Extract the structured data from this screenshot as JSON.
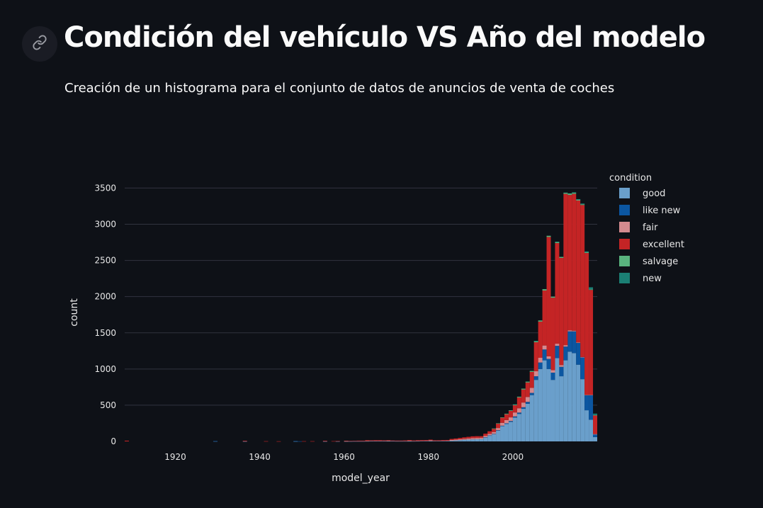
{
  "header": {
    "title": "Condición del vehículo VS Año del modelo",
    "subtitle": "Creación de un histograma para el conjunto de datos de anuncios de venta de coches",
    "anchor_icon": "link-icon"
  },
  "chart_data": {
    "type": "bar",
    "stacked": true,
    "xlabel": "model_year",
    "ylabel": "count",
    "xlim": [
      1908,
      2019
    ],
    "ylim": [
      0,
      3700
    ],
    "x_ticks": [
      1920,
      1940,
      1960,
      1980,
      2000
    ],
    "y_ticks": [
      0,
      500,
      1000,
      1500,
      2000,
      2500,
      3000,
      3500
    ],
    "grid": true,
    "legend": {
      "title": "condition",
      "placement": "right"
    },
    "bin_start": 1908,
    "bin_width": 1,
    "series": [
      {
        "name": "good",
        "color": "#6a9fcb",
        "bins": [
          [
            1929,
            3
          ],
          [
            1936,
            2
          ],
          [
            1948,
            2
          ],
          [
            1955,
            2
          ],
          [
            1958,
            2
          ],
          [
            1960,
            2
          ],
          [
            1961,
            2
          ],
          [
            1962,
            3
          ],
          [
            1963,
            3
          ],
          [
            1964,
            3
          ],
          [
            1965,
            4
          ],
          [
            1966,
            5
          ],
          [
            1967,
            5
          ],
          [
            1968,
            5
          ],
          [
            1969,
            5
          ],
          [
            1970,
            5
          ],
          [
            1971,
            5
          ],
          [
            1972,
            4
          ],
          [
            1973,
            4
          ],
          [
            1974,
            4
          ],
          [
            1975,
            4
          ],
          [
            1976,
            4
          ],
          [
            1977,
            5
          ],
          [
            1978,
            6
          ],
          [
            1979,
            7
          ],
          [
            1980,
            6
          ],
          [
            1981,
            6
          ],
          [
            1982,
            6
          ],
          [
            1983,
            7
          ],
          [
            1984,
            8
          ],
          [
            1985,
            10
          ],
          [
            1986,
            14
          ],
          [
            1987,
            18
          ],
          [
            1988,
            22
          ],
          [
            1989,
            25
          ],
          [
            1990,
            28
          ],
          [
            1991,
            30
          ],
          [
            1992,
            32
          ],
          [
            1993,
            55
          ],
          [
            1994,
            80
          ],
          [
            1995,
            100
          ],
          [
            1996,
            150
          ],
          [
            1997,
            210
          ],
          [
            1998,
            240
          ],
          [
            1999,
            270
          ],
          [
            2000,
            330
          ],
          [
            2001,
            380
          ],
          [
            2002,
            450
          ],
          [
            2003,
            520
          ],
          [
            2004,
            640
          ],
          [
            2005,
            850
          ],
          [
            2006,
            1000
          ],
          [
            2007,
            1120
          ],
          [
            2008,
            1000
          ],
          [
            2009,
            850
          ],
          [
            2010,
            1150
          ],
          [
            2011,
            900
          ],
          [
            2012,
            1120
          ],
          [
            2013,
            1240
          ],
          [
            2014,
            1220
          ],
          [
            2015,
            1060
          ],
          [
            2016,
            860
          ],
          [
            2017,
            430
          ],
          [
            2018,
            300
          ],
          [
            2019,
            60
          ]
        ]
      },
      {
        "name": "like new",
        "color": "#0b56a1",
        "bins": [
          [
            1929,
            2
          ],
          [
            1948,
            3
          ],
          [
            1949,
            2
          ],
          [
            1993,
            2
          ],
          [
            1994,
            3
          ],
          [
            1995,
            4
          ],
          [
            1996,
            5
          ],
          [
            1997,
            7
          ],
          [
            1998,
            10
          ],
          [
            1999,
            12
          ],
          [
            2000,
            15
          ],
          [
            2001,
            18
          ],
          [
            2002,
            22
          ],
          [
            2003,
            26
          ],
          [
            2004,
            30
          ],
          [
            2005,
            50
          ],
          [
            2006,
            90
          ],
          [
            2007,
            150
          ],
          [
            2008,
            140
          ],
          [
            2009,
            100
          ],
          [
            2010,
            170
          ],
          [
            2011,
            130
          ],
          [
            2012,
            190
          ],
          [
            2013,
            280
          ],
          [
            2014,
            300
          ],
          [
            2015,
            300
          ],
          [
            2016,
            300
          ],
          [
            2017,
            210
          ],
          [
            2018,
            340
          ],
          [
            2019,
            40
          ]
        ]
      },
      {
        "name": "fair",
        "color": "#d48a8f",
        "bins": [
          [
            1960,
            3
          ],
          [
            1965,
            3
          ],
          [
            1970,
            4
          ],
          [
            1975,
            5
          ],
          [
            1980,
            8
          ],
          [
            1985,
            10
          ],
          [
            1986,
            10
          ],
          [
            1987,
            12
          ],
          [
            1988,
            14
          ],
          [
            1989,
            16
          ],
          [
            1990,
            18
          ],
          [
            1991,
            18
          ],
          [
            1992,
            18
          ],
          [
            1993,
            20
          ],
          [
            1994,
            22
          ],
          [
            1995,
            26
          ],
          [
            1996,
            30
          ],
          [
            1997,
            40
          ],
          [
            1998,
            45
          ],
          [
            1999,
            50
          ],
          [
            2000,
            55
          ],
          [
            2001,
            60
          ],
          [
            2002,
            65
          ],
          [
            2003,
            68
          ],
          [
            2004,
            70
          ],
          [
            2005,
            70
          ],
          [
            2006,
            65
          ],
          [
            2007,
            55
          ],
          [
            2008,
            35
          ],
          [
            2009,
            35
          ],
          [
            2010,
            30
          ],
          [
            2011,
            25
          ],
          [
            2012,
            20
          ],
          [
            2013,
            15
          ],
          [
            2014,
            10
          ],
          [
            2015,
            8
          ],
          [
            2016,
            6
          ],
          [
            2017,
            3
          ],
          [
            2018,
            3
          ],
          [
            2019,
            1
          ]
        ]
      },
      {
        "name": "excellent",
        "color": "#c42425",
        "bins": [
          [
            1908,
            10
          ],
          [
            1936,
            8
          ],
          [
            1941,
            3
          ],
          [
            1944,
            2
          ],
          [
            1950,
            3
          ],
          [
            1952,
            3
          ],
          [
            1955,
            8
          ],
          [
            1957,
            4
          ],
          [
            1958,
            4
          ],
          [
            1960,
            4
          ],
          [
            1961,
            6
          ],
          [
            1962,
            6
          ],
          [
            1963,
            8
          ],
          [
            1964,
            8
          ],
          [
            1965,
            10
          ],
          [
            1966,
            10
          ],
          [
            1967,
            12
          ],
          [
            1968,
            12
          ],
          [
            1969,
            10
          ],
          [
            1970,
            8
          ],
          [
            1971,
            8
          ],
          [
            1972,
            8
          ],
          [
            1973,
            8
          ],
          [
            1974,
            10
          ],
          [
            1975,
            10
          ],
          [
            1976,
            10
          ],
          [
            1977,
            12
          ],
          [
            1978,
            12
          ],
          [
            1979,
            12
          ],
          [
            1980,
            10
          ],
          [
            1981,
            10
          ],
          [
            1982,
            10
          ],
          [
            1983,
            12
          ],
          [
            1984,
            12
          ],
          [
            1985,
            14
          ],
          [
            1986,
            16
          ],
          [
            1987,
            18
          ],
          [
            1988,
            20
          ],
          [
            1989,
            22
          ],
          [
            1990,
            24
          ],
          [
            1991,
            24
          ],
          [
            1992,
            22
          ],
          [
            1993,
            30
          ],
          [
            1994,
            35
          ],
          [
            1995,
            45
          ],
          [
            1996,
            60
          ],
          [
            1997,
            70
          ],
          [
            1998,
            80
          ],
          [
            1999,
            90
          ],
          [
            2000,
            100
          ],
          [
            2001,
            150
          ],
          [
            2002,
            180
          ],
          [
            2003,
            200
          ],
          [
            2004,
            220
          ],
          [
            2005,
            400
          ],
          [
            2006,
            500
          ],
          [
            2007,
            760
          ],
          [
            2008,
            1650
          ],
          [
            2009,
            1000
          ],
          [
            2010,
            1390
          ],
          [
            2011,
            1480
          ],
          [
            2012,
            2090
          ],
          [
            2013,
            1870
          ],
          [
            2014,
            1890
          ],
          [
            2015,
            1960
          ],
          [
            2016,
            2100
          ],
          [
            2017,
            1960
          ],
          [
            2018,
            1450
          ],
          [
            2019,
            260
          ]
        ]
      },
      {
        "name": "salvage",
        "color": "#59b37e",
        "bins": [
          [
            1995,
            4
          ],
          [
            1996,
            5
          ],
          [
            1997,
            6
          ],
          [
            1998,
            8
          ],
          [
            1999,
            8
          ],
          [
            2000,
            10
          ],
          [
            2001,
            10
          ],
          [
            2002,
            12
          ],
          [
            2003,
            12
          ],
          [
            2004,
            14
          ],
          [
            2005,
            16
          ],
          [
            2006,
            16
          ],
          [
            2007,
            18
          ],
          [
            2008,
            16
          ],
          [
            2009,
            14
          ],
          [
            2010,
            16
          ],
          [
            2011,
            14
          ],
          [
            2012,
            14
          ],
          [
            2013,
            16
          ],
          [
            2014,
            14
          ],
          [
            2015,
            12
          ],
          [
            2016,
            10
          ],
          [
            2017,
            10
          ],
          [
            2018,
            6
          ],
          [
            2019,
            3
          ]
        ]
      },
      {
        "name": "new",
        "color": "#1b7f74",
        "bins": [
          [
            2000,
            2
          ],
          [
            2005,
            2
          ],
          [
            2010,
            3
          ],
          [
            2012,
            4
          ],
          [
            2013,
            6
          ],
          [
            2014,
            8
          ],
          [
            2015,
            8
          ],
          [
            2016,
            10
          ],
          [
            2017,
            12
          ],
          [
            2018,
            30
          ],
          [
            2019,
            20
          ]
        ]
      }
    ]
  }
}
